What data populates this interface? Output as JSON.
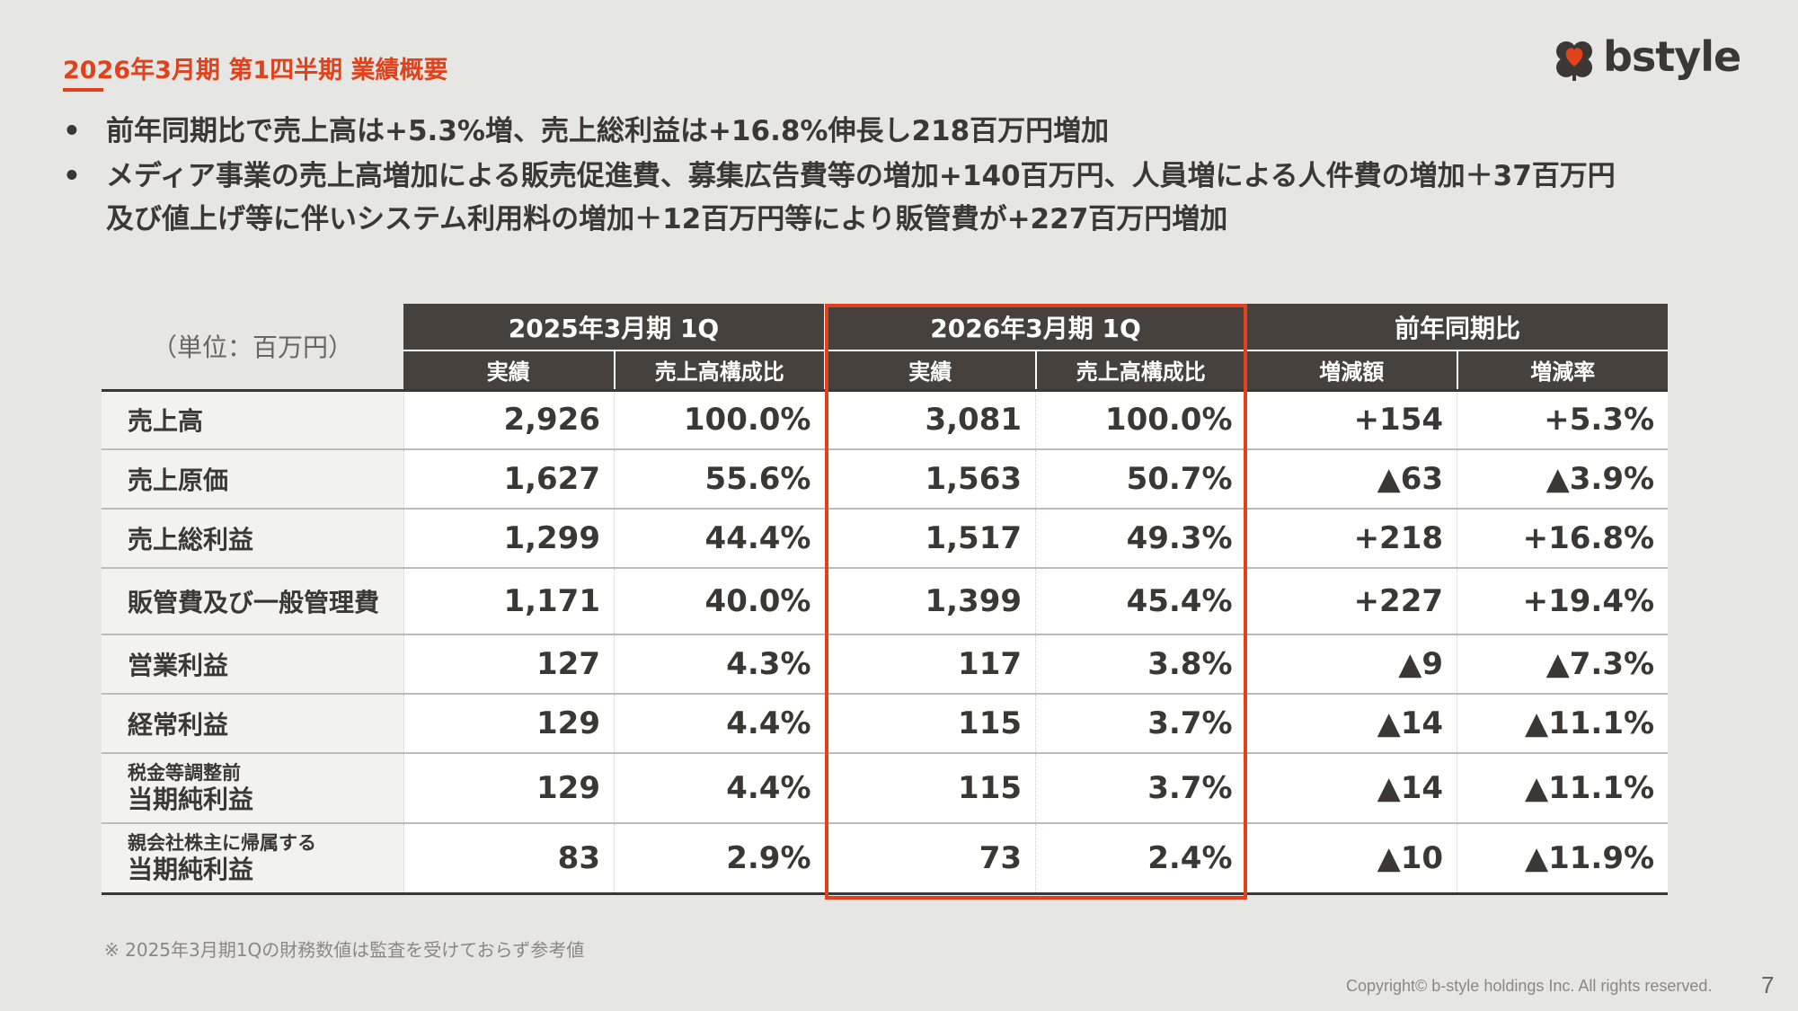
{
  "header": {
    "title": "2026年3月期 第1四半期 業績概要",
    "logo_text": "bstyle",
    "logo_icon": "clover-heart-icon"
  },
  "bullets": [
    {
      "lines": [
        "前年同期比で売上高は+5.3%増、売上総利益は+16.8%伸長し218百万円増加"
      ]
    },
    {
      "lines": [
        "メディア事業の売上高増加による販売促進費、募集広告費等の増加+140百万円、人員増による人件費の増加＋37百万円",
        "及び値上げ等に伴いシステム利用料の増加＋12百万円等により販管費が+227百万円増加"
      ]
    }
  ],
  "table": {
    "unit_label": "（単位：百万円）",
    "group_headers": [
      "2025年3月期 1Q",
      "2026年3月期 1Q",
      "前年同期比"
    ],
    "sub_headers": [
      "実績",
      "売上高構成比",
      "実績",
      "売上高構成比",
      "増減額",
      "増減率"
    ],
    "rows": [
      {
        "label": "売上高",
        "cells": [
          "2,926",
          "100.0%",
          "3,081",
          "100.0%",
          "+154",
          "+5.3%"
        ]
      },
      {
        "label": "売上原価",
        "cells": [
          "1,627",
          "55.6%",
          "1,563",
          "50.7%",
          "▲63",
          "▲3.9%"
        ]
      },
      {
        "label": "売上総利益",
        "cells": [
          "1,299",
          "44.4%",
          "1,517",
          "49.3%",
          "+218",
          "+16.8%"
        ]
      },
      {
        "label": "販管費及び一般管理費",
        "cells": [
          "1,171",
          "40.0%",
          "1,399",
          "45.4%",
          "+227",
          "+19.4%"
        ]
      },
      {
        "label": "営業利益",
        "cells": [
          "127",
          "4.3%",
          "117",
          "3.8%",
          "▲9",
          "▲7.3%"
        ]
      },
      {
        "label": "経常利益",
        "cells": [
          "129",
          "4.4%",
          "115",
          "3.7%",
          "▲14",
          "▲11.1%"
        ]
      },
      {
        "label_small": "税金等調整前",
        "label_big": "当期純利益",
        "cells": [
          "129",
          "4.4%",
          "115",
          "3.7%",
          "▲14",
          "▲11.1%"
        ]
      },
      {
        "label_small": "親会社株主に帰属する",
        "label_big": "当期純利益",
        "cells": [
          "83",
          "2.9%",
          "73",
          "2.4%",
          "▲10",
          "▲11.9%"
        ]
      }
    ]
  },
  "footnote": "※ 2025年3月期1Qの財務数値は監査を受けておらず参考値",
  "footer": {
    "copyright": "Copyright© b-style holdings Inc. All rights reserved.",
    "page_number": "7"
  },
  "colors": {
    "accent": "#e0421c",
    "header_bg": "#46413d",
    "page_bg": "#e6e6e4"
  }
}
